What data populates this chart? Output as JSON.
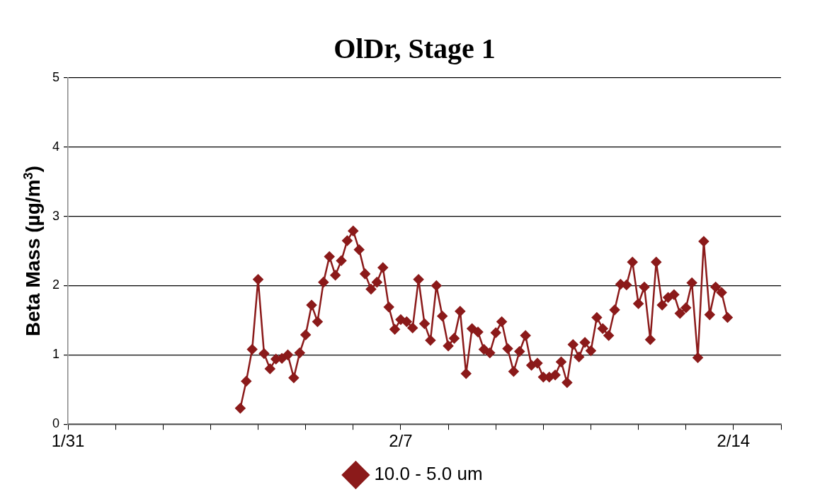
{
  "chart_data": {
    "type": "line",
    "title": "OlDr, Stage 1",
    "ylabel": "Beta Mass (µg/m$^{3}$)",
    "x": [
      "--02-03T15:00",
      "--02-03T18:00",
      "--02-03T21:00",
      "--02-04T00:00",
      "--02-04T03:00",
      "--02-04T06:00",
      "--02-04T09:00",
      "--02-04T12:00",
      "--02-04T15:00",
      "--02-04T18:00",
      "--02-04T21:00",
      "--02-05T00:00",
      "--02-05T03:00",
      "--02-05T06:00",
      "--02-05T09:00",
      "--02-05T12:00",
      "--02-05T15:00",
      "--02-05T18:00",
      "--02-05T21:00",
      "--02-06T00:00",
      "--02-06T03:00",
      "--02-06T06:00",
      "--02-06T09:00",
      "--02-06T12:00",
      "--02-06T15:00",
      "--02-06T18:00",
      "--02-06T21:00",
      "--02-07T00:00",
      "--02-07T03:00",
      "--02-07T06:00",
      "--02-07T09:00",
      "--02-07T12:00",
      "--02-07T15:00",
      "--02-07T18:00",
      "--02-07T21:00",
      "--02-08T00:00",
      "--02-08T03:00",
      "--02-08T06:00",
      "--02-08T09:00",
      "--02-08T12:00",
      "--02-08T15:00",
      "--02-08T18:00",
      "--02-08T21:00",
      "--02-09T00:00",
      "--02-09T03:00",
      "--02-09T06:00",
      "--02-09T09:00",
      "--02-09T12:00",
      "--02-09T15:00",
      "--02-09T18:00",
      "--02-09T21:00",
      "--02-10T00:00",
      "--02-10T03:00",
      "--02-10T06:00",
      "--02-10T09:00",
      "--02-10T12:00",
      "--02-10T15:00",
      "--02-10T18:00",
      "--02-10T21:00",
      "--02-11T00:00",
      "--02-11T03:00",
      "--02-11T06:00",
      "--02-11T09:00",
      "--02-11T12:00",
      "--02-11T15:00",
      "--02-11T18:00",
      "--02-11T21:00",
      "--02-12T00:00",
      "--02-12T03:00",
      "--02-12T06:00",
      "--02-12T09:00",
      "--02-12T12:00",
      "--02-12T15:00",
      "--02-12T18:00",
      "--02-12T21:00",
      "--02-13T00:00",
      "--02-13T03:00",
      "--02-13T06:00",
      "--02-13T09:00",
      "--02-13T12:00",
      "--02-13T15:00",
      "--02-13T18:00",
      "--02-13T21:00"
    ],
    "series": [
      {
        "name": "10.0 - 5.0 um",
        "color": "#8b1a1a",
        "values": [
          0.23,
          0.62,
          1.08,
          2.09,
          1.02,
          0.8,
          0.94,
          0.95,
          1.0,
          0.67,
          1.03,
          1.29,
          1.72,
          1.48,
          2.05,
          2.42,
          2.15,
          2.36,
          2.65,
          2.79,
          2.52,
          2.17,
          1.95,
          2.05,
          2.26,
          1.69,
          1.37,
          1.51,
          1.48,
          1.39,
          2.09,
          1.45,
          1.21,
          2.0,
          1.56,
          1.13,
          1.24,
          1.63,
          0.73,
          1.38,
          1.33,
          1.08,
          1.03,
          1.32,
          1.48,
          1.09,
          0.76,
          1.05,
          1.28,
          0.85,
          0.88,
          0.68,
          0.68,
          0.71,
          0.9,
          0.6,
          1.15,
          0.97,
          1.18,
          1.06,
          1.54,
          1.38,
          1.28,
          1.65,
          2.02,
          2.01,
          2.34,
          1.74,
          1.98,
          1.22,
          2.34,
          1.72,
          1.83,
          1.87,
          1.6,
          1.68,
          2.04,
          0.96,
          2.64,
          1.58,
          1.98,
          1.9,
          1.54
        ]
      }
    ],
    "xlim": [
      "--01-31",
      "--02-15"
    ],
    "xticks": [
      {
        "value": "--01-31",
        "label": "1/31"
      },
      {
        "value": "--02-01",
        "label": null
      },
      {
        "value": "--02-02",
        "label": null
      },
      {
        "value": "--02-03",
        "label": null
      },
      {
        "value": "--02-04",
        "label": null
      },
      {
        "value": "--02-05",
        "label": null
      },
      {
        "value": "--02-06",
        "label": null
      },
      {
        "value": "--02-07",
        "label": "2/7"
      },
      {
        "value": "--02-08",
        "label": null
      },
      {
        "value": "--02-09",
        "label": null
      },
      {
        "value": "--02-10",
        "label": null
      },
      {
        "value": "--02-11",
        "label": null
      },
      {
        "value": "--02-12",
        "label": null
      },
      {
        "value": "--02-13",
        "label": null
      },
      {
        "value": "--02-14",
        "label": "2/14"
      },
      {
        "value": "--02-15",
        "label": null
      }
    ],
    "ylim": [
      0,
      5
    ],
    "yticks": [
      0,
      1,
      2,
      3,
      4,
      5
    ],
    "grid": "y",
    "legend": "bottom",
    "marker": "diamond",
    "line_style": "solid"
  }
}
